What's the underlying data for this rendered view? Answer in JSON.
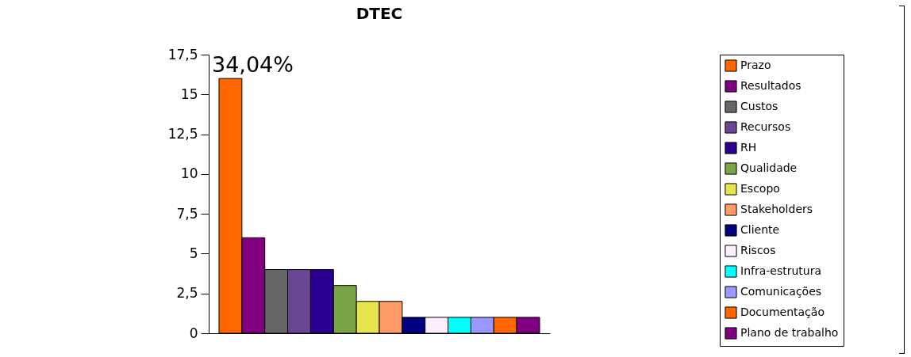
{
  "chart_data": {
    "type": "bar",
    "title": "DTEC",
    "categories": [
      null
    ],
    "series": [
      {
        "name": "Prazo",
        "color": "#ff6600",
        "values": [
          16
        ]
      },
      {
        "name": "Resultados",
        "color": "#800080",
        "values": [
          6
        ]
      },
      {
        "name": "Custos",
        "color": "#666666",
        "values": [
          4
        ]
      },
      {
        "name": "Recursos",
        "color": "#6b4793",
        "values": [
          4
        ]
      },
      {
        "name": "RH",
        "color": "#2a0093",
        "values": [
          4
        ]
      },
      {
        "name": "Qualidade",
        "color": "#7ba446",
        "values": [
          3
        ]
      },
      {
        "name": "Escopo",
        "color": "#e6e64c",
        "values": [
          2
        ]
      },
      {
        "name": "Stakeholders",
        "color": "#ff9966",
        "values": [
          2
        ]
      },
      {
        "name": "Cliente",
        "color": "#000080",
        "values": [
          1
        ]
      },
      {
        "name": "Riscos",
        "color": "#fdeefd",
        "values": [
          1
        ]
      },
      {
        "name": "Infra-estrutura",
        "color": "#00ffff",
        "values": [
          1
        ]
      },
      {
        "name": "Comunicações",
        "color": "#9999ff",
        "values": [
          1
        ]
      },
      {
        "name": "Documentação",
        "color": "#ff6600",
        "values": [
          1
        ]
      },
      {
        "name": "Plano de trabalho",
        "color": "#800080",
        "values": [
          1
        ]
      }
    ],
    "ylim": [
      0,
      17.5
    ],
    "yticks": [
      0,
      {
        "value": 2.5,
        "label": "2,5"
      },
      5,
      {
        "value": 7.5,
        "label": "7,5"
      },
      10,
      {
        "value": 12.5,
        "label": "12,5"
      },
      15,
      {
        "value": 17.5,
        "label": "17,5"
      }
    ],
    "annotations": [
      "34,04%"
    ],
    "legend": "right",
    "grid": false,
    "tick_labels": "y"
  }
}
